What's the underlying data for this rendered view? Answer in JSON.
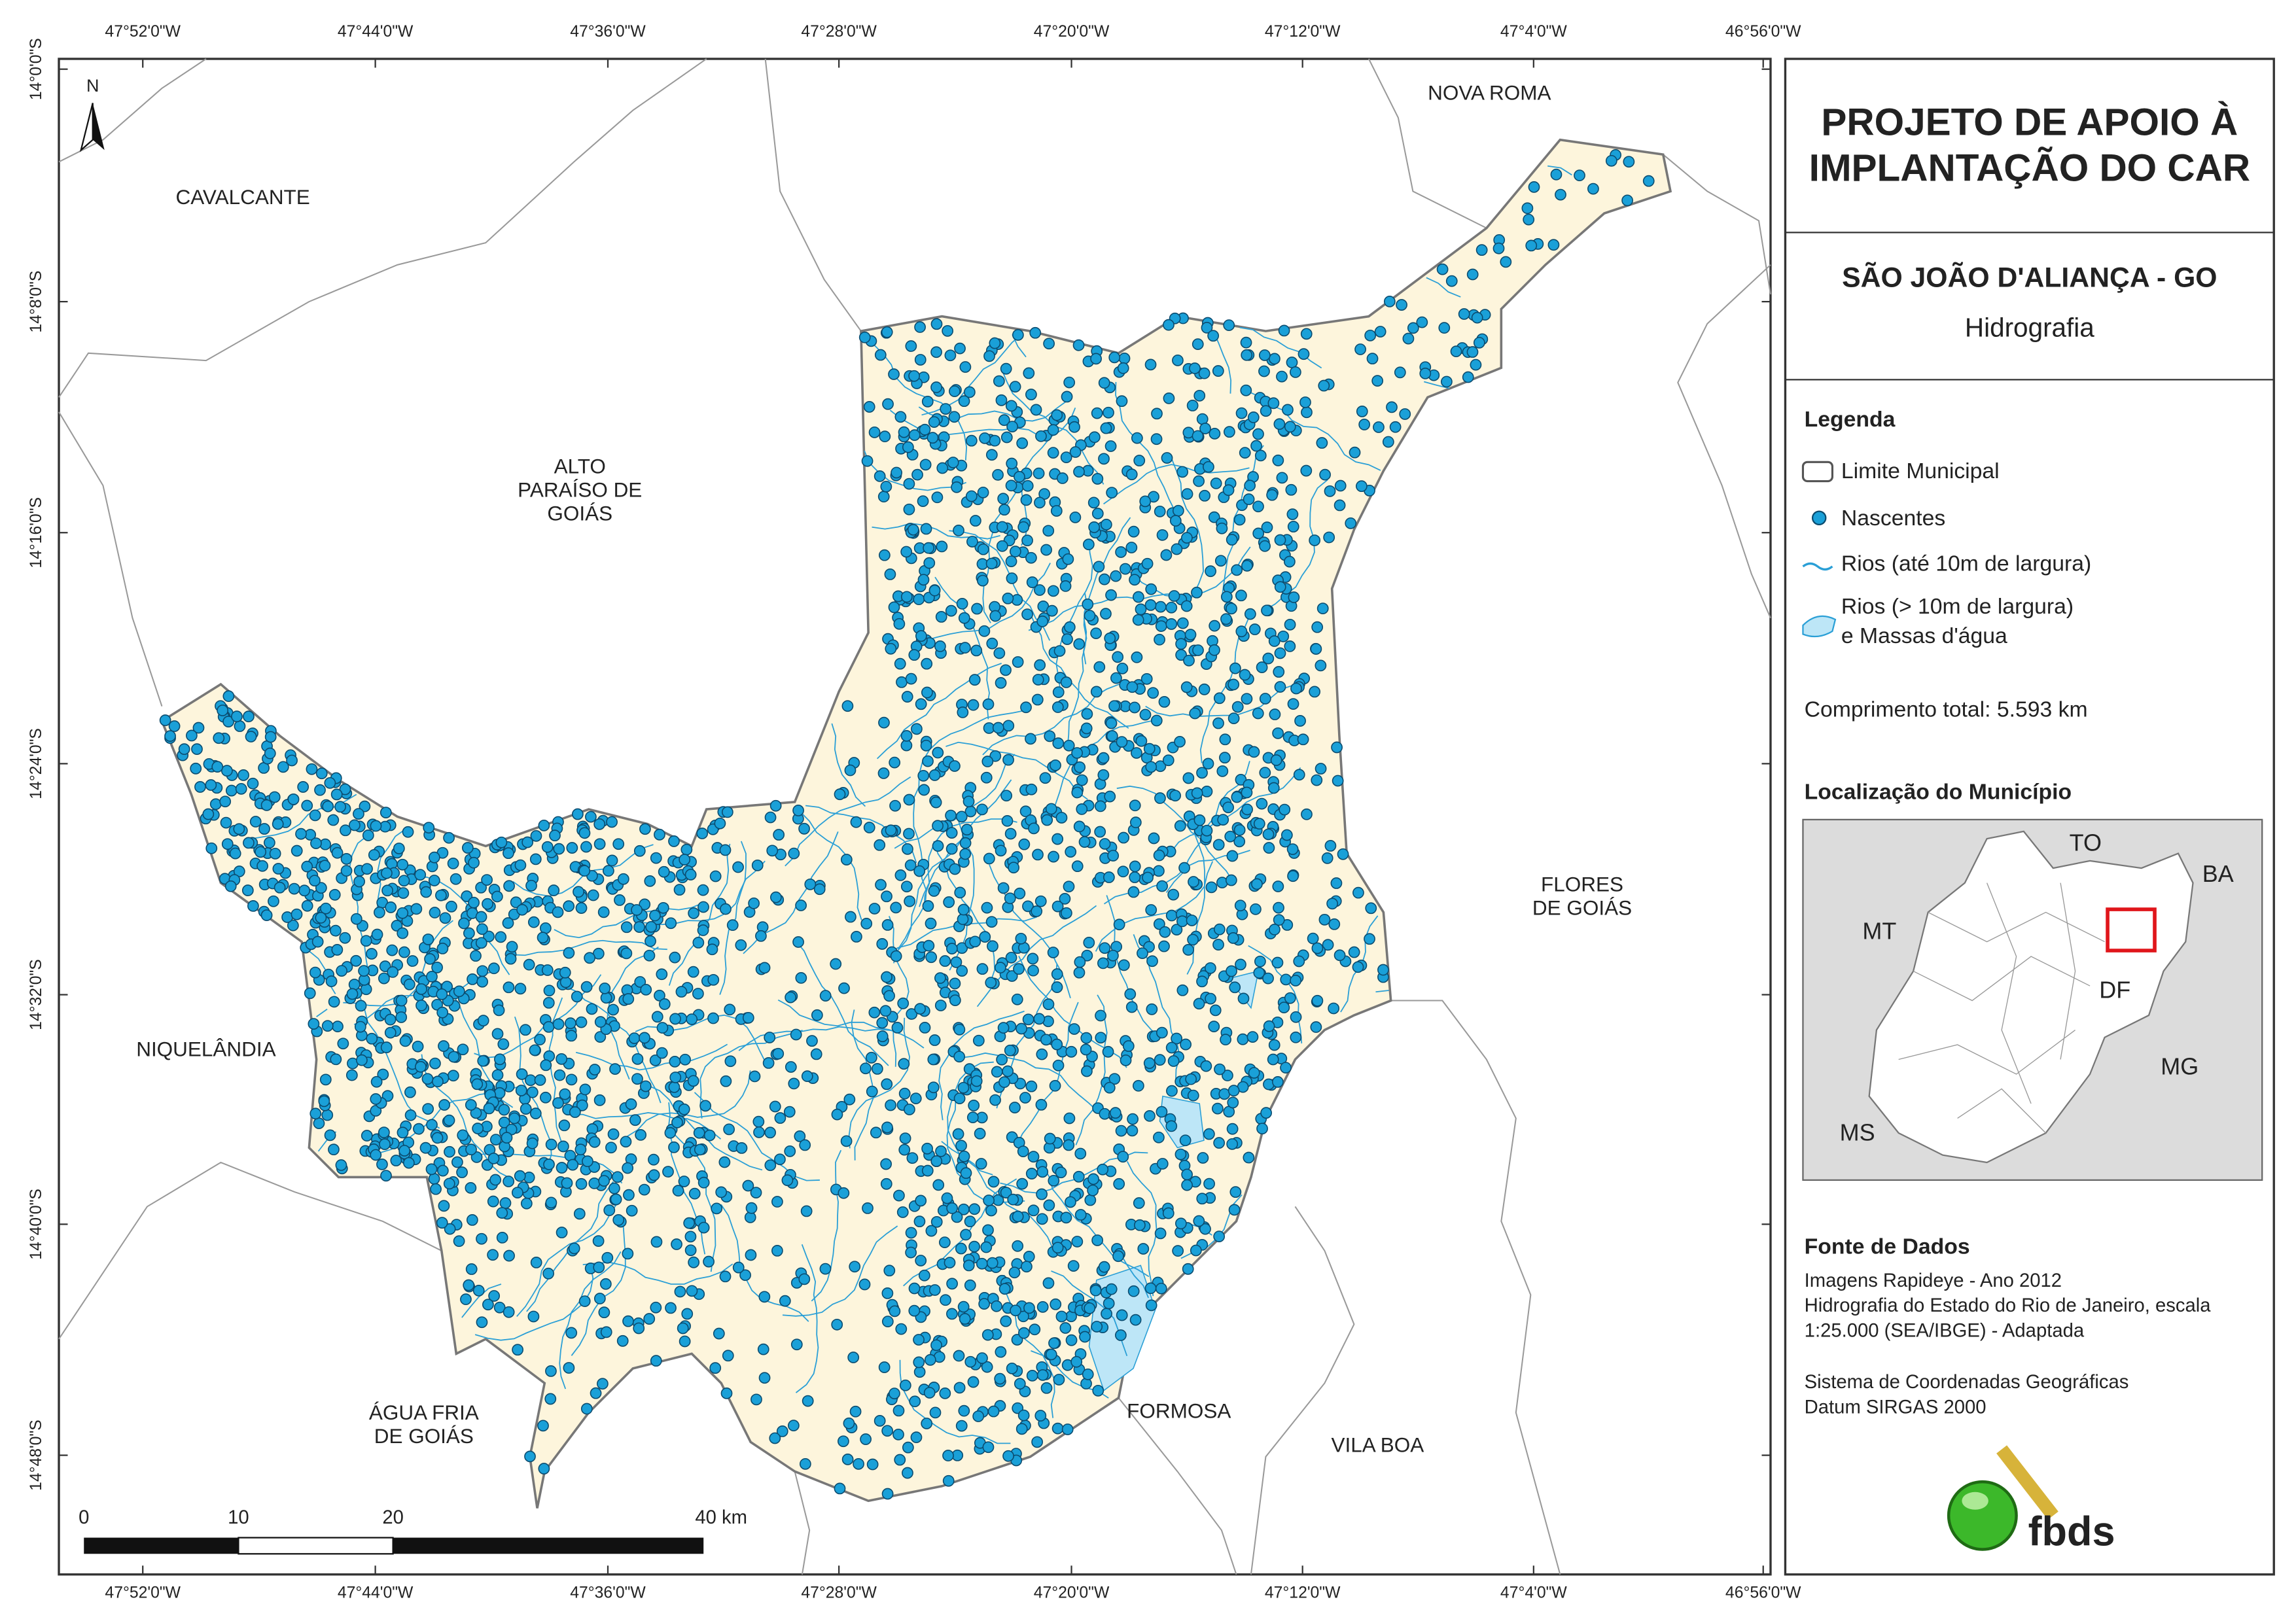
{
  "map": {
    "lon_labels": [
      "47°52'0\"W",
      "47°44'0\"W",
      "47°36'0\"W",
      "47°28'0\"W",
      "47°20'0\"W",
      "47°12'0\"W",
      "47°4'0\"W",
      "46°56'0\"W"
    ],
    "lat_labels": [
      "14°0'0\"S",
      "14°8'0\"S",
      "14°16'0\"S",
      "14°24'0\"S",
      "14°32'0\"S",
      "14°40'0\"S",
      "14°48'0\"S"
    ],
    "north": "N",
    "places": [
      {
        "lines": [
          "CAVALCANTE"
        ]
      },
      {
        "lines": [
          "NOVA ROMA"
        ]
      },
      {
        "lines": [
          "ALTO",
          "PARAÍSO DE",
          "GOIÁS"
        ]
      },
      {
        "lines": [
          "FLORES",
          "DE GOIÁS"
        ]
      },
      {
        "lines": [
          "NIQUELÂNDIA"
        ]
      },
      {
        "lines": [
          "ÁGUA FRIA",
          "DE GOIÁS"
        ]
      },
      {
        "lines": [
          "FORMOSA"
        ]
      },
      {
        "lines": [
          "VILA BOA"
        ]
      }
    ],
    "scale_labels": [
      "0",
      "10",
      "20",
      "40 km"
    ]
  },
  "panel": {
    "title": [
      "PROJETO DE APOIO À",
      "IMPLANTAÇÃO DO CAR"
    ],
    "subtitle": "SÃO JOÃO D'ALIANÇA - GO",
    "theme": "Hidrografia",
    "legend_heading": "Legenda",
    "legend_items": [
      {
        "lines": [
          "Limite Municipal"
        ]
      },
      {
        "lines": [
          "Nascentes"
        ]
      },
      {
        "lines": [
          "Rios (até 10m de largura)"
        ]
      },
      {
        "lines": [
          "Rios (> 10m de largura)",
          "e Massas d'água"
        ]
      }
    ],
    "total": "Comprimento total: 5.593  km",
    "location_heading": "Localização do Município",
    "inset_labels": [
      "TO",
      "BA",
      "MT",
      "DF",
      "MG",
      "MS"
    ],
    "sources_heading": "Fonte de Dados",
    "sources": [
      "Imagens Rapideye - Ano 2012",
      "Hidrografia do Estado do Rio de Janeiro, escala",
      "1:25.000 (SEA/IBGE) - Adaptada"
    ],
    "crs": [
      "Sistema de Coordenadas Geográficas",
      "Datum SIRGAS 2000"
    ],
    "logo": "fbds"
  }
}
